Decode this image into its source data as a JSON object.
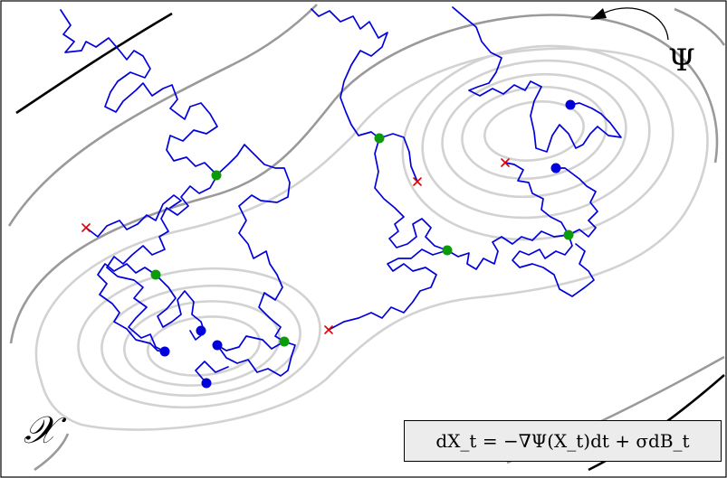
{
  "labels": {
    "potential": "Ψ",
    "space": "𝒳",
    "equation": "dX_t = −∇Ψ(X_t)dt + σdB_t"
  },
  "colors": {
    "trajectory": "#0000dd",
    "start_point": "#0000dd",
    "intermediate_point": "#0a9a0a",
    "end_marker": "#e00000",
    "contour_light": "#d2d2d2",
    "contour_mid": "#9a9a9a",
    "contour_dark": "#000000",
    "formula_background": "#ececec"
  },
  "legend_items": {
    "start_marker": "blue-dot",
    "intermediate_marker": "green-dot",
    "end_marker": "red-cross"
  }
}
